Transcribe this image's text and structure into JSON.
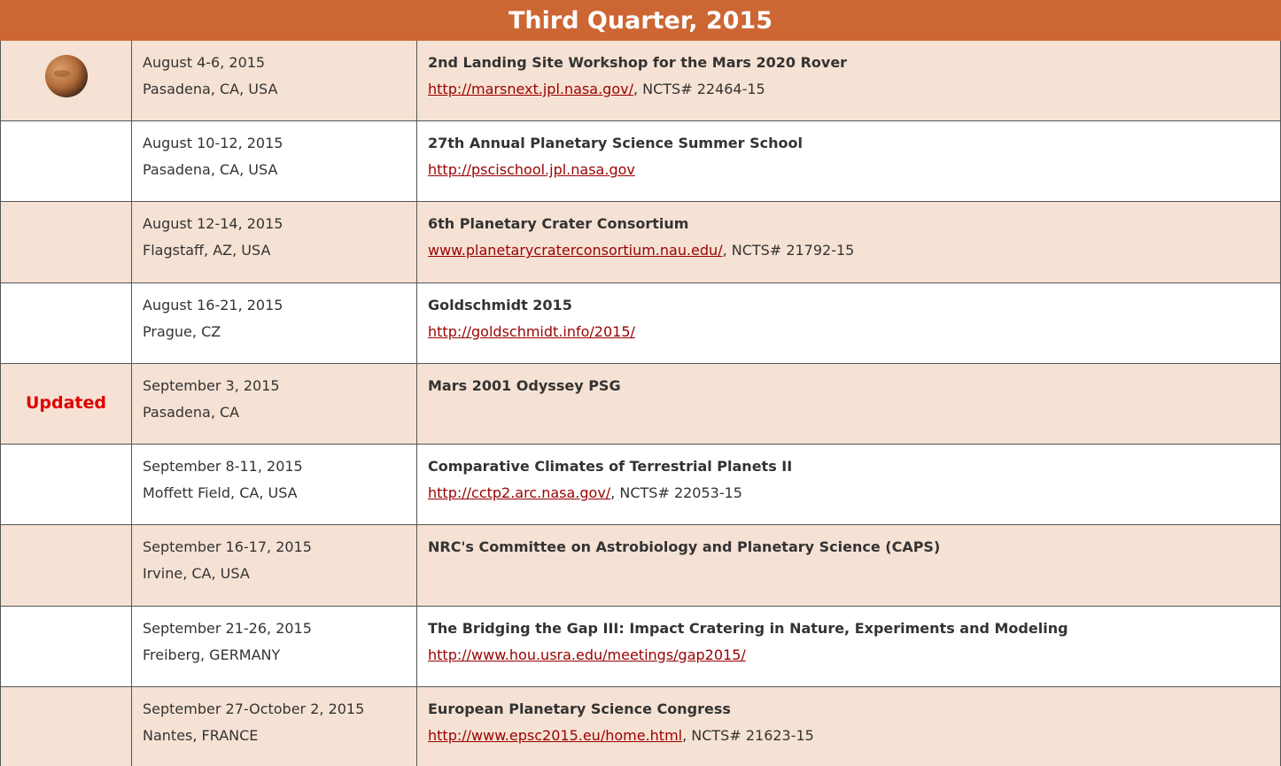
{
  "header": {
    "title": "Third Quarter, 2015"
  },
  "rows": [
    {
      "icon": "mars",
      "date": "August 4-6, 2015",
      "location": "Pasadena, CA, USA",
      "title": "2nd Landing Site Workshop for the Mars 2020 Rover",
      "link": "http://marsnext.jpl.nasa.gov/",
      "note": ", NCTS# 22464-15"
    },
    {
      "date": "August 10-12, 2015",
      "location": "Pasadena, CA, USA",
      "title": "27th Annual Planetary Science Summer School",
      "link": "http://pscischool.jpl.nasa.gov"
    },
    {
      "date": "August 12-14, 2015",
      "location": "Flagstaff, AZ, USA",
      "title": "6th Planetary Crater Consortium",
      "link": "www.planetarycraterconsortium.nau.edu/",
      "note": ", NCTS# 21792-15"
    },
    {
      "date": "August 16-21, 2015",
      "location": "Prague, CZ",
      "title": "Goldschmidt 2015",
      "link": "http://goldschmidt.info/2015/"
    },
    {
      "badge": "Updated",
      "date": "September 3, 2015",
      "location": "Pasadena, CA",
      "title": "Mars 2001 Odyssey PSG"
    },
    {
      "date": "September 8-11, 2015",
      "location": "Moffett Field, CA, USA",
      "title": "Comparative Climates of Terrestrial Planets II",
      "link": "http://cctp2.arc.nasa.gov/",
      "note": ", NCTS# 22053-15"
    },
    {
      "date": "September 16-17, 2015",
      "location": "Irvine, CA, USA",
      "title": "NRC's Committee on Astrobiology and Planetary Science (CAPS)"
    },
    {
      "date": "September 21-26, 2015",
      "location": "Freiberg, GERMANY",
      "title": "The Bridging the Gap III: Impact Cratering in Nature, Experiments and Modeling",
      "link": "http://www.hou.usra.edu/meetings/gap2015/"
    },
    {
      "date": "September 27-October 2, 2015",
      "location": "Nantes, FRANCE",
      "title": "European Planetary Science Congress",
      "link": "http://www.epsc2015.eu/home.html",
      "note": ", NCTS# 21623-15"
    }
  ]
}
